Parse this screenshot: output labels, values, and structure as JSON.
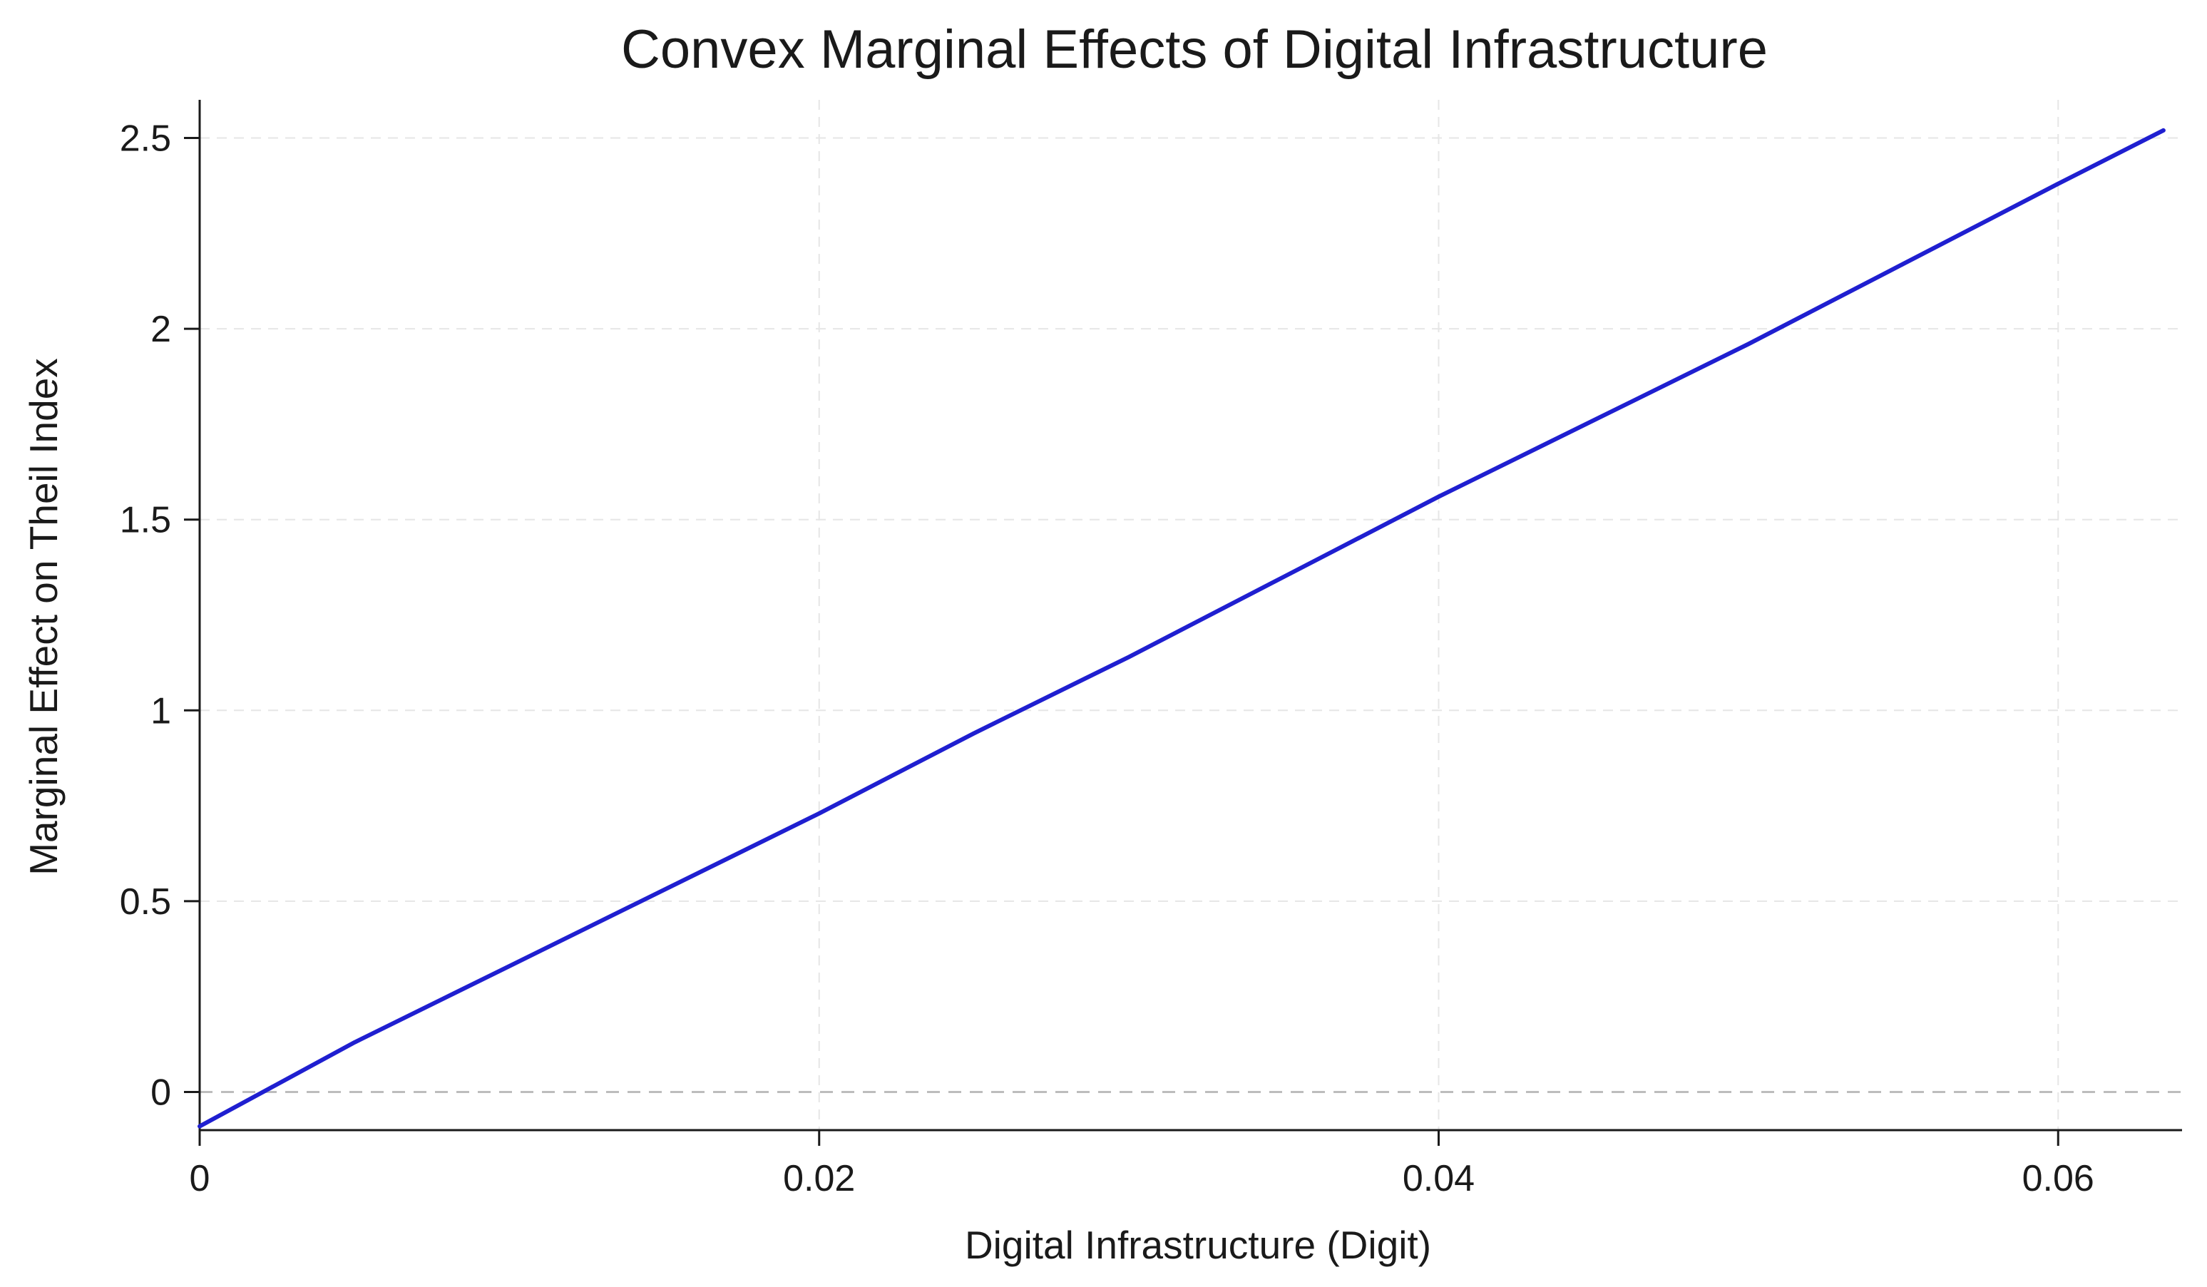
{
  "chart_data": {
    "type": "line",
    "title": "Convex Marginal Effects of Digital Infrastructure",
    "xlabel": "Digital Infrastructure (Digit)",
    "ylabel": "Marginal Effect on Theil Index",
    "xlim": [
      0,
      0.064
    ],
    "ylim": [
      -0.1,
      2.6
    ],
    "x_ticks": [
      0,
      0.02,
      0.04,
      0.06
    ],
    "x_tick_labels": [
      "0",
      "0.02",
      "0.04",
      "0.06"
    ],
    "y_ticks": [
      0,
      0.5,
      1,
      1.5,
      2,
      2.5
    ],
    "y_tick_labels": [
      "0",
      "0.5",
      "1",
      "1.5",
      "2",
      "2.5"
    ],
    "grid": true,
    "legend": "none",
    "line_color": "#1f1fd0",
    "zero_reference_line": true,
    "series": [
      {
        "x": [
          0,
          0.005,
          0.01,
          0.015,
          0.02,
          0.025,
          0.03,
          0.035,
          0.04,
          0.045,
          0.05,
          0.055,
          0.06,
          0.0634
        ],
        "values": [
          -0.09,
          0.13,
          0.33,
          0.53,
          0.73,
          0.94,
          1.14,
          1.35,
          1.56,
          1.76,
          1.96,
          2.17,
          2.38,
          2.52
        ]
      }
    ]
  }
}
